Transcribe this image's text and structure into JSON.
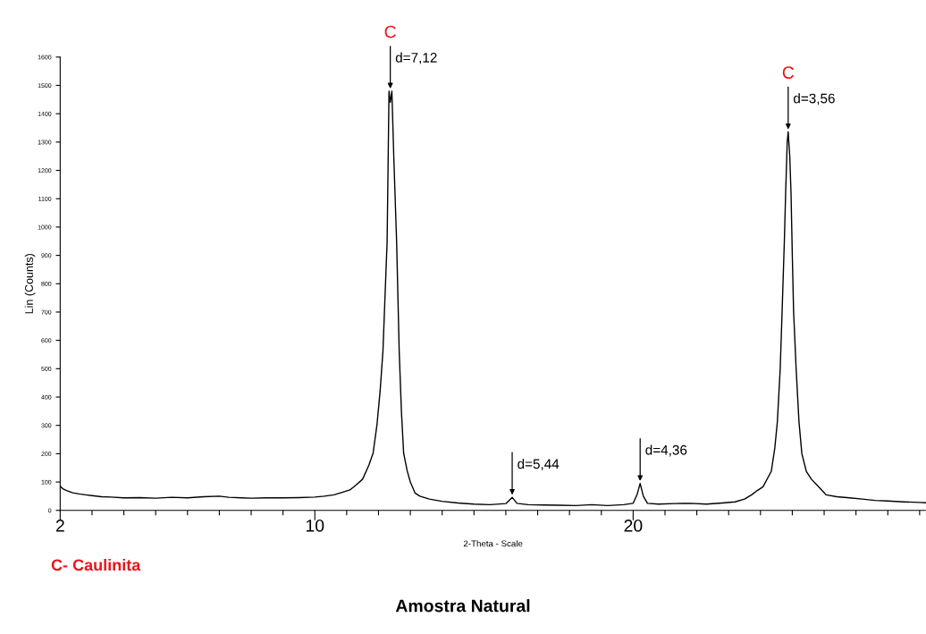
{
  "chart_data": {
    "type": "line",
    "title": "Amostra Natural",
    "xlabel": "2-Theta - Scale",
    "ylabel": "Lin (Counts)",
    "xlim": [
      2,
      29.2
    ],
    "ylim": [
      0,
      1600
    ],
    "xticks": [
      2,
      {
        "value": 3,
        "label": null
      },
      {
        "value": 4,
        "label": null
      },
      {
        "value": 5,
        "label": null
      },
      {
        "value": 6,
        "label": null
      },
      {
        "value": 7,
        "label": null
      },
      {
        "value": 8,
        "label": null
      },
      {
        "value": 9,
        "label": null
      },
      10,
      {
        "value": 11,
        "label": null
      },
      {
        "value": 12,
        "label": null
      },
      {
        "value": 13,
        "label": null
      },
      {
        "value": 14,
        "label": null
      },
      {
        "value": 15,
        "label": null
      },
      {
        "value": 16,
        "label": null
      },
      {
        "value": 17,
        "label": null
      },
      {
        "value": 18,
        "label": null
      },
      {
        "value": 19,
        "label": null
      },
      20,
      {
        "value": 21,
        "label": null
      },
      {
        "value": 22,
        "label": null
      },
      {
        "value": 23,
        "label": null
      },
      {
        "value": 24,
        "label": null
      },
      {
        "value": 25,
        "label": null
      },
      {
        "value": 26,
        "label": null
      },
      {
        "value": 27,
        "label": null
      },
      {
        "value": 28,
        "label": null
      },
      {
        "value": 29,
        "label": null
      }
    ],
    "yticks": [
      0,
      100,
      200,
      300,
      400,
      500,
      600,
      700,
      800,
      900,
      1000,
      1100,
      1200,
      1300,
      1400,
      1500,
      1600
    ],
    "grid": false,
    "legend": false,
    "marker": "none",
    "line_style": "solid",
    "series": [
      {
        "color": "#000000",
        "x": [
          2.0,
          2.1,
          2.2,
          2.4,
          2.6,
          2.8,
          3.0,
          3.3,
          3.6,
          4.0,
          4.5,
          5.0,
          5.5,
          6.0,
          6.5,
          7.0,
          7.3,
          7.7,
          8.0,
          8.5,
          9.0,
          9.5,
          10.0,
          10.3,
          10.6,
          10.9,
          11.1,
          11.3,
          11.5,
          11.7,
          11.83,
          11.95,
          12.05,
          12.14,
          12.22,
          12.27,
          12.31,
          12.33,
          12.37,
          12.42,
          12.48,
          12.57,
          12.65,
          12.72,
          12.79,
          12.9,
          13.0,
          13.15,
          13.3,
          13.6,
          14.0,
          14.5,
          15.0,
          15.5,
          16.0,
          16.2,
          16.35,
          16.7,
          17.2,
          17.7,
          18.2,
          18.7,
          19.2,
          19.7,
          20.0,
          20.12,
          20.22,
          20.32,
          20.45,
          20.8,
          21.3,
          21.8,
          22.3,
          22.8,
          23.2,
          23.5,
          23.72,
          23.9,
          24.08,
          24.34,
          24.45,
          24.53,
          24.62,
          24.68,
          24.75,
          24.79,
          24.84,
          24.87,
          24.92,
          24.96,
          25.0,
          25.04,
          25.12,
          25.21,
          25.3,
          25.44,
          25.6,
          25.83,
          26.06,
          26.4,
          26.8,
          27.2,
          27.6,
          28.0,
          28.5,
          29.0,
          29.2
        ],
        "values": [
          85,
          75,
          70,
          62,
          58,
          55,
          52,
          48,
          47,
          44,
          45,
          43,
          46,
          44,
          48,
          50,
          46,
          44,
          43,
          44,
          44,
          45,
          47,
          50,
          55,
          65,
          72,
          90,
          110,
          160,
          202,
          300,
          420,
          563,
          800,
          945,
          1300,
          1480,
          1440,
          1480,
          1250,
          945,
          563,
          350,
          202,
          140,
          100,
          61,
          50,
          40,
          32,
          26,
          22,
          20,
          24,
          46,
          25,
          20,
          19,
          18,
          17,
          20,
          17,
          20,
          25,
          55,
          95,
          50,
          25,
          22,
          24,
          25,
          22,
          26,
          30,
          40,
          55,
          70,
          83,
          138,
          220,
          312,
          500,
          703,
          950,
          1119,
          1300,
          1336,
          1250,
          1119,
          900,
          703,
          500,
          312,
          200,
          138,
          110,
          83,
          55,
          48,
          44,
          40,
          35,
          33,
          30,
          28,
          27
        ]
      }
    ],
    "annotations": [
      {
        "text": "d=7,12",
        "x": 12.37,
        "y": 1480
      },
      {
        "text": "C",
        "x": 12.37,
        "y": 1480
      },
      {
        "text": "d=3,56",
        "x": 24.87,
        "y": 1336
      },
      {
        "text": "C",
        "x": 24.87,
        "y": 1336
      },
      {
        "text": "d=5,44",
        "x": 16.2,
        "y": 46
      },
      {
        "text": "d=4,36",
        "x": 20.22,
        "y": 95
      },
      "C- Caulinita"
    ]
  }
}
